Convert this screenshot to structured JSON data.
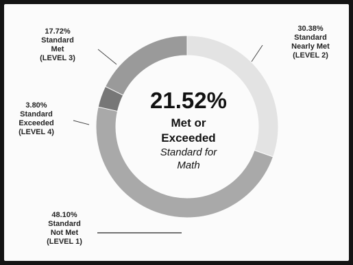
{
  "chart_data": {
    "type": "pie",
    "variant": "donut",
    "segments": [
      {
        "value": 30.38,
        "value_label": "30.38%",
        "label_lines": [
          "Standard",
          "Nearly Met",
          "(LEVEL 2)"
        ],
        "color": "#e3e3e3"
      },
      {
        "value": 48.1,
        "value_label": "48.10%",
        "label_lines": [
          "Standard",
          "Not Met",
          "(LEVEL 1)"
        ],
        "color": "#a9a9a9"
      },
      {
        "value": 3.8,
        "value_label": "3.80%",
        "label_lines": [
          "Standard",
          "Exceeded",
          "(LEVEL 4)"
        ],
        "color": "#777777"
      },
      {
        "value": 17.72,
        "value_label": "17.72%",
        "label_lines": [
          "Standard",
          "Met",
          "(LEVEL 3)"
        ],
        "color": "#9a9a9a"
      }
    ],
    "center_text": {
      "value": "21.52%",
      "line1": "Met or",
      "line2": "Exceeded",
      "line3": "Standard for",
      "line4": "Math"
    },
    "legend": "none"
  }
}
